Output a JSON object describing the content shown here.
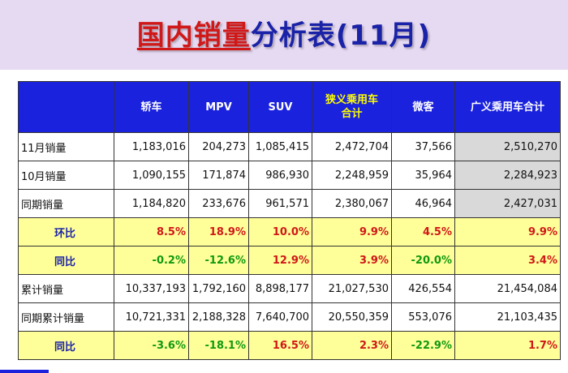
{
  "title": {
    "part1": "国内销量",
    "part2": "分析表(11月)"
  },
  "columns": [
    "",
    "轿车",
    "MPV",
    "SUV",
    "狭义乘用车合计",
    "微客",
    "广义乘用车合计"
  ],
  "rows": [
    {
      "label": "11月销量",
      "values": [
        "1,183,016",
        "204,273",
        "1,085,415",
        "2,472,704",
        "37,566",
        "2,510,270"
      ]
    },
    {
      "label": "10月销量",
      "values": [
        "1,090,155",
        "171,874",
        "986,930",
        "2,248,959",
        "35,964",
        "2,284,923"
      ]
    },
    {
      "label": "同期销量",
      "values": [
        "1,184,820",
        "233,676",
        "961,571",
        "2,380,067",
        "46,964",
        "2,427,031"
      ]
    },
    {
      "label": "环比",
      "values": [
        "8.5%",
        "18.9%",
        "10.0%",
        "9.9%",
        "4.5%",
        "9.9%"
      ]
    },
    {
      "label": "同比",
      "values": [
        "-0.2%",
        "-12.6%",
        "12.9%",
        "3.9%",
        "-20.0%",
        "3.4%"
      ]
    },
    {
      "label": "累计销量",
      "values": [
        "10,337,193",
        "1,792,160",
        "8,898,177",
        "21,027,530",
        "426,554",
        "21,454,084"
      ]
    },
    {
      "label": "同期累计销量",
      "values": [
        "10,721,331",
        "2,188,328",
        "7,640,700",
        "20,550,359",
        "553,076",
        "21,103,435"
      ]
    },
    {
      "label": "同比",
      "values": [
        "-3.6%",
        "-18.1%",
        "16.5%",
        "2.3%",
        "-22.9%",
        "1.7%"
      ]
    }
  ],
  "colors": {
    "header_bg": "#1a22dd",
    "highlight_text": "#ffff00",
    "ratio_row_bg": "#ffff99",
    "positive": "#d01818",
    "negative": "#119911",
    "total_cell_bg": "#d9d9d9"
  }
}
